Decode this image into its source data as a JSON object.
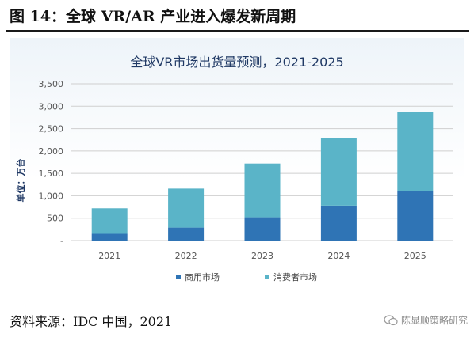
{
  "figure": {
    "title": "图 14：全球 VR/AR 产业进入爆发新周期",
    "source": "资料来源：IDC 中国，2021",
    "watermark": "陈显顺策略研究"
  },
  "colors": {
    "commercial": "#2f74b5",
    "consumer": "#5ab4c8",
    "title_text": "#1f3864",
    "axis_text": "#555555",
    "grid": "#cfcfcf"
  },
  "chart_data": {
    "type": "bar",
    "stacked": true,
    "title": "全球VR市场出货量预测，2021-2025",
    "ylabel": "单位：万台",
    "xlabel": "",
    "categories": [
      "2021",
      "2022",
      "2023",
      "2024",
      "2025"
    ],
    "ylim": [
      0,
      3500
    ],
    "yticks": [
      "-",
      "500",
      "1,000",
      "1,500",
      "2,000",
      "2,500",
      "3,000",
      "3,500"
    ],
    "ytick_values": [
      0,
      500,
      1000,
      1500,
      2000,
      2500,
      3000,
      3500
    ],
    "grid": true,
    "legend_position": "bottom",
    "series": [
      {
        "name": "商用市场",
        "values": [
          150,
          290,
          520,
          780,
          1100
        ]
      },
      {
        "name": "消费者市场",
        "values": [
          570,
          870,
          1200,
          1510,
          1770
        ]
      }
    ]
  }
}
